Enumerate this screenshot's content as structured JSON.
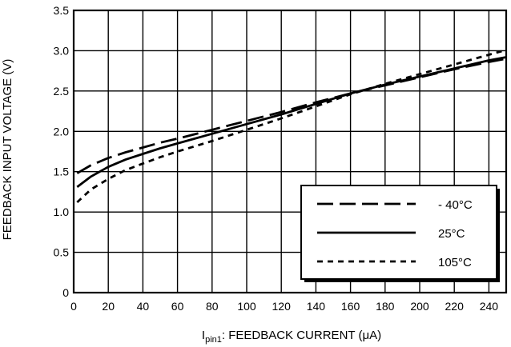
{
  "chart_data": {
    "type": "line",
    "xlabel_main": "I",
    "xlabel_sub": "pin1",
    "xlabel_rest": ": FEEDBACK CURRENT (μA)",
    "ylabel": "FEEDBACK INPUT VOLTAGE (V)",
    "xlim": [
      0,
      250
    ],
    "ylim": [
      0,
      3.5
    ],
    "xticks": [
      "0",
      "20",
      "40",
      "60",
      "80",
      "100",
      "120",
      "140",
      "160",
      "180",
      "200",
      "220",
      "240"
    ],
    "yticks": [
      "0",
      "0.5",
      "1.0",
      "1.5",
      "2.0",
      "2.5",
      "3.0",
      "3.5"
    ],
    "grid": true,
    "legend_position": "bottom-right",
    "series": [
      {
        "name": "- 40°C",
        "dash": "dashed",
        "x": [
          2,
          10,
          20,
          30,
          40,
          50,
          60,
          80,
          100,
          120,
          140,
          160,
          180,
          200,
          220,
          240,
          250
        ],
        "y": [
          1.48,
          1.58,
          1.67,
          1.74,
          1.8,
          1.86,
          1.91,
          2.02,
          2.13,
          2.24,
          2.36,
          2.47,
          2.57,
          2.67,
          2.77,
          2.86,
          2.9
        ]
      },
      {
        "name": "25°C",
        "dash": "solid",
        "x": [
          2,
          10,
          20,
          30,
          40,
          50,
          60,
          80,
          100,
          120,
          140,
          160,
          180,
          200,
          220,
          240,
          250
        ],
        "y": [
          1.31,
          1.44,
          1.56,
          1.65,
          1.72,
          1.79,
          1.85,
          1.97,
          2.09,
          2.21,
          2.34,
          2.47,
          2.58,
          2.68,
          2.78,
          2.88,
          2.92
        ]
      },
      {
        "name": "105°C",
        "dash": "dotted",
        "x": [
          2,
          10,
          20,
          30,
          40,
          50,
          60,
          80,
          100,
          120,
          140,
          160,
          180,
          200,
          220,
          240,
          250
        ],
        "y": [
          1.12,
          1.28,
          1.41,
          1.52,
          1.6,
          1.68,
          1.75,
          1.88,
          2.02,
          2.16,
          2.31,
          2.46,
          2.59,
          2.71,
          2.83,
          2.95,
          3.01
        ]
      }
    ]
  }
}
